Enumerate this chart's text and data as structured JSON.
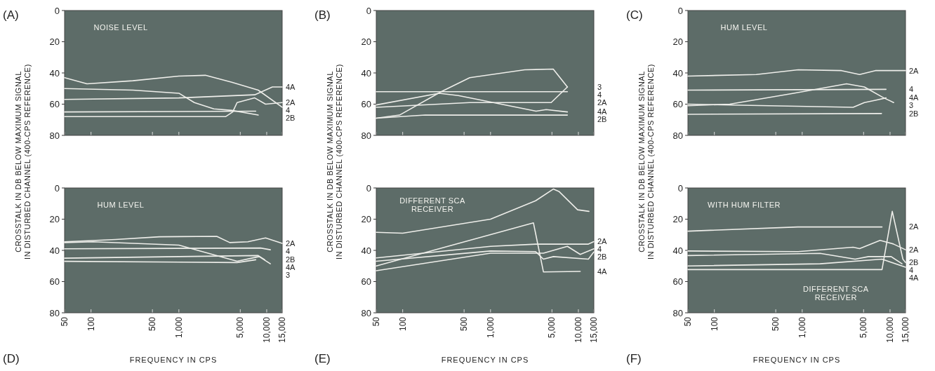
{
  "chart_data": [
    {
      "type": "line",
      "title": "(A)",
      "ylabel": "CROSSTALK IN DB BELOW MAXIMUM SIGNAL\nIN DISTURBED CHANNEL (400-CPS REFERENCE)",
      "log": "x",
      "xlim": [
        50,
        15000
      ],
      "ylim": [
        80,
        0
      ],
      "xticks": [
        50,
        100,
        500,
        1000,
        5000,
        10000,
        15000
      ],
      "yticks": [
        0,
        20,
        40,
        60,
        80
      ],
      "tick_labels": "y",
      "annotations": [
        "NOISE LEVEL"
      ],
      "series": [
        {
          "name": "4",
          "color": "#eeeeea",
          "x": [
            50,
            90,
            300,
            1000,
            2000,
            4000,
            8000,
            15000
          ],
          "values": [
            43,
            47,
            45,
            42,
            41.5,
            46,
            51,
            62
          ]
        },
        {
          "name": "4A",
          "color": "#eeeeea",
          "x": [
            50,
            1000,
            7300,
            11600,
            15000
          ],
          "values": [
            57,
            56,
            54,
            49,
            49
          ]
        },
        {
          "color": "#eeeeea",
          "x": [
            50,
            300,
            1000,
            1500,
            2500,
            4000,
            8000
          ],
          "values": [
            50,
            51,
            53,
            59,
            63,
            64,
            67
          ]
        },
        {
          "name": "2B",
          "color": "#eeeeea",
          "x": [
            50,
            7500
          ],
          "values": [
            65,
            64.5
          ]
        },
        {
          "name": "2A",
          "color": "#eeeeea",
          "x": [
            50,
            3400,
            4100,
            4600,
            7300,
            9700,
            15000
          ],
          "values": [
            68,
            68,
            65,
            59,
            56,
            60,
            59
          ]
        }
      ]
    },
    {
      "type": "line",
      "title": "(B)",
      "ylabel": "CROSSTALK IN DB BELOW MAXIMUM SIGNAL\nIN DISTURBED CHANNEL (400-CPS REFERENCE)",
      "log": "x",
      "xlim": [
        50,
        15000
      ],
      "ylim": [
        80,
        0
      ],
      "xticks": [
        50,
        100,
        500,
        1000,
        5000,
        10000,
        15000
      ],
      "yticks": [
        0,
        20,
        40,
        60,
        80
      ],
      "tick_labels": "y",
      "series": [
        {
          "name": "3",
          "color": "#eeeeea",
          "x": [
            50,
            92,
            274,
            580,
            2450,
            5170,
            7500
          ],
          "values": [
            69,
            67,
            52,
            43,
            38,
            37.5,
            49
          ]
        },
        {
          "name": "2A",
          "color": "#eeeeea",
          "x": [
            50,
            7500
          ],
          "values": [
            52,
            52
          ]
        },
        {
          "name": "4",
          "color": "#eeeeea",
          "x": [
            50,
            580,
            4900,
            7500
          ],
          "values": [
            62,
            59,
            59,
            49
          ]
        },
        {
          "name": "4A",
          "color": "#eeeeea",
          "x": [
            50,
            260,
            430,
            3300,
            4300,
            7500
          ],
          "values": [
            60.5,
            53,
            54.5,
            64.5,
            63.5,
            65
          ]
        },
        {
          "name": "2B",
          "color": "#eeeeea",
          "x": [
            50,
            180,
            7500
          ],
          "values": [
            69,
            67,
            67
          ]
        }
      ]
    },
    {
      "type": "line",
      "title": "(C)",
      "ylabel": "CROSSTALK IN DB BELOW MAXIMUM SIGNAL\nIN DISTURBED CHANNEL (400-CPS REFERENCE)",
      "log": "x",
      "xlim": [
        50,
        15000
      ],
      "ylim": [
        80,
        0
      ],
      "xticks": [
        50,
        100,
        500,
        1000,
        5000,
        10000,
        15000
      ],
      "yticks": [
        0,
        20,
        40,
        60,
        80
      ],
      "tick_labels": "y",
      "annotations": [
        "HUM LEVEL"
      ],
      "series": [
        {
          "name": "2A",
          "color": "#eeeeea",
          "x": [
            50,
            300,
            900,
            2800,
            4500,
            6800,
            15000
          ],
          "values": [
            42,
            41,
            38,
            38.5,
            41,
            38.5,
            38.5
          ]
        },
        {
          "name": "4",
          "color": "#eeeeea",
          "x": [
            50,
            9000
          ],
          "values": [
            51,
            50.5
          ]
        },
        {
          "name": "4A",
          "color": "#eeeeea",
          "x": [
            50,
            3800,
            5100,
            6800,
            9000
          ],
          "values": [
            60,
            62,
            59,
            57.5,
            56
          ]
        },
        {
          "name": "3",
          "color": "#eeeeea",
          "x": [
            50,
            150,
            800,
            3200,
            5100,
            8500,
            11000
          ],
          "values": [
            61,
            60,
            53,
            47,
            49,
            56,
            59
          ]
        },
        {
          "name": "2B",
          "color": "#eeeeea",
          "x": [
            50,
            8000
          ],
          "values": [
            66.5,
            66
          ]
        }
      ]
    },
    {
      "type": "line",
      "title": "(D)",
      "xlabel": "FREQUENCY IN CPS",
      "log": "x",
      "xlim": [
        50,
        15000
      ],
      "ylim": [
        80,
        0
      ],
      "xticks": [
        50,
        100,
        500,
        {
          "value": 1000,
          "label": "1,000"
        },
        {
          "value": 5000,
          "label": "5,000"
        },
        {
          "value": 10000,
          "label": "10,000"
        },
        {
          "value": 15000,
          "label": "15,000"
        }
      ],
      "yticks": [
        0,
        20,
        40,
        60,
        80
      ],
      "annotations": [
        "HUM LEVEL"
      ],
      "series": [
        {
          "name": "2A",
          "color": "#eeeeea",
          "x": [
            50,
            190,
            600,
            2700,
            3800,
            6100,
            9700,
            15000
          ],
          "values": [
            34.5,
            33,
            31.3,
            31,
            35,
            34.5,
            32,
            35.5
          ]
        },
        {
          "name": "4",
          "color": "#eeeeea",
          "x": [
            50,
            8500,
            11000
          ],
          "values": [
            39,
            38.5,
            39.6
          ]
        },
        {
          "name": "3",
          "color": "#eeeeea",
          "x": [
            50,
            106,
            1000,
            4600,
            8200,
            11000
          ],
          "values": [
            35,
            34.5,
            36.6,
            47,
            44,
            48.6
          ]
        },
        {
          "name": "2B",
          "color": "#eeeeea",
          "x": [
            50,
            4600,
            7500
          ],
          "values": [
            47,
            47.8,
            46
          ]
        },
        {
          "name": "4A",
          "color": "#eeeeea",
          "x": [
            50,
            1000,
            8000,
            9500
          ],
          "values": [
            45,
            44,
            43.3,
            46
          ]
        }
      ]
    },
    {
      "type": "line",
      "title": "(E)",
      "xlabel": "FREQUENCY IN CPS",
      "log": "x",
      "xlim": [
        50,
        15000
      ],
      "ylim": [
        80,
        0
      ],
      "xticks": [
        50,
        100,
        500,
        {
          "value": 1000,
          "label": "1,000"
        },
        {
          "value": 5000,
          "label": "5,000"
        },
        {
          "value": 10000,
          "label": "10,000"
        },
        {
          "value": 15000,
          "label": "15,000"
        }
      ],
      "yticks": [
        0,
        20,
        40,
        60,
        80
      ],
      "annotations": [
        "DIFFERENT SCA\nRECEIVER"
      ],
      "series": [
        {
          "color": "#eeeeea",
          "x": [
            50,
            100,
            1000,
            3260,
            5180,
            6000,
            9800,
            13200
          ],
          "values": [
            28.4,
            29,
            20,
            8.2,
            0.7,
            2.2,
            14,
            15
          ]
        },
        {
          "name": "4A",
          "color": "#eeeeea",
          "x": [
            50,
            3080,
            4000,
            10500
          ],
          "values": [
            50,
            22.4,
            53.8,
            53.5
          ]
        },
        {
          "name": "2A",
          "color": "#eeeeea",
          "x": [
            50,
            1000,
            3260,
            6000,
            13000,
            15000
          ],
          "values": [
            44.8,
            37.4,
            36,
            36,
            36,
            34.4
          ]
        },
        {
          "name": "2B",
          "color": "#eeeeea",
          "x": [
            50,
            1000,
            3260,
            4000,
            5200,
            13000,
            15000
          ],
          "values": [
            47,
            40.4,
            40.8,
            45.6,
            44,
            45.6,
            41
          ]
        },
        {
          "name": "4",
          "color": "#eeeeea",
          "x": [
            50,
            1000,
            3260,
            4000,
            7500,
            10500,
            15000
          ],
          "values": [
            53,
            41.8,
            41.8,
            41.8,
            37.4,
            42.6,
            39
          ]
        }
      ]
    },
    {
      "type": "line",
      "title": "(F)",
      "xlabel": "FREQUENCY IN CPS",
      "log": "x",
      "xlim": [
        50,
        15000
      ],
      "ylim": [
        80,
        0
      ],
      "xticks": [
        50,
        100,
        500,
        {
          "value": 1000,
          "label": "1,000"
        },
        {
          "value": 5000,
          "label": "5,000"
        },
        {
          "value": 10000,
          "label": "10,000"
        },
        {
          "value": 15000,
          "label": "15,000"
        }
      ],
      "yticks": [
        0,
        20,
        40,
        60,
        80
      ],
      "annotations": [
        "WITH HUM FILTER",
        "DIFFERENT SCA\nRECEIVER"
      ],
      "series": [
        {
          "name": "2A",
          "color": "#eeeeea",
          "x": [
            50,
            890,
            8100
          ],
          "values": [
            27.7,
            25,
            25
          ]
        },
        {
          "name": "2A",
          "color": "#eeeeea",
          "x": [
            50,
            900,
            3800,
            4500,
            7700,
            10900,
            15000
          ],
          "values": [
            40.4,
            40.8,
            38,
            38.9,
            33.6,
            35.9,
            39.6
          ]
        },
        {
          "name": "4",
          "color": "#eeeeea",
          "x": [
            50,
            1600,
            4000,
            5700,
            10300,
            13700
          ],
          "values": [
            43.3,
            41.9,
            45.6,
            44,
            44,
            48.6
          ]
        },
        {
          "name": "4A",
          "color": "#eeeeea",
          "x": [
            50,
            1600,
            8100,
            15000
          ],
          "values": [
            50,
            48.6,
            45.6,
            50.8
          ]
        },
        {
          "name": "2B",
          "color": "#eeeeea",
          "x": [
            50,
            8100,
            10600,
            14000,
            15000
          ],
          "values": [
            52.3,
            52.3,
            15,
            45.6,
            47.8
          ]
        }
      ]
    }
  ]
}
